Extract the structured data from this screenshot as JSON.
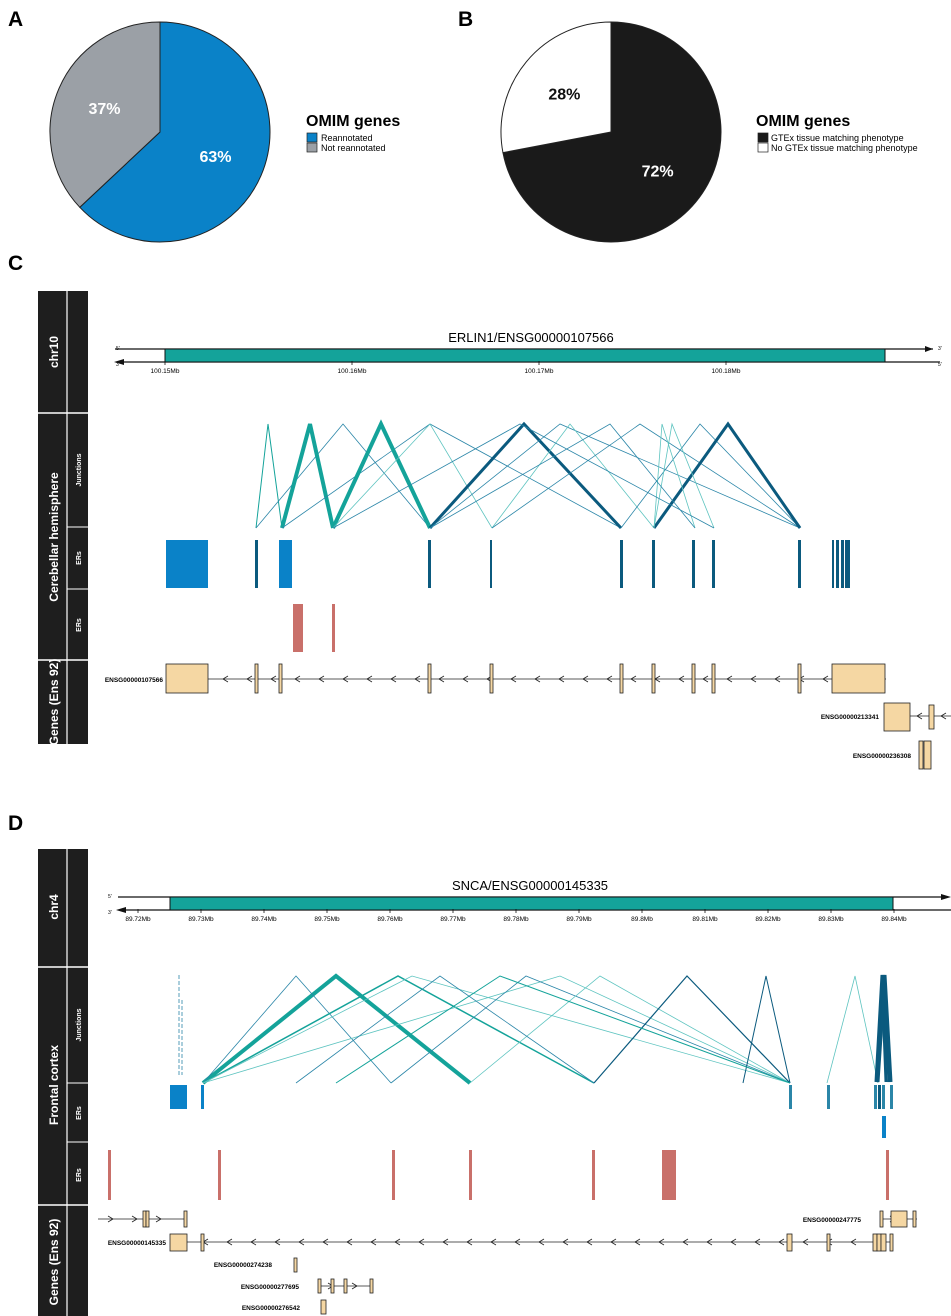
{
  "panels": {
    "A": {
      "letter": "A",
      "legend_title": "OMIM genes",
      "labels": [
        "63%",
        "37%"
      ],
      "chart_data": {
        "type": "pie",
        "categories": [
          "Reannotated",
          "Not reannotated"
        ],
        "values": [
          63,
          37
        ],
        "colors": [
          "#0a82c8",
          "#9ba0a6"
        ],
        "label_colors": [
          "#ffffff",
          "#ffffff"
        ],
        "legend_placement": "right"
      }
    },
    "B": {
      "letter": "B",
      "legend_title": "OMIM genes",
      "labels": [
        "72%",
        "28%"
      ],
      "chart_data": {
        "type": "pie",
        "categories": [
          "GTEx tissue matching phenotype",
          "No GTEx tissue matching phenotype"
        ],
        "values": [
          72,
          28
        ],
        "colors": [
          "#1a1a1a",
          "#ffffff"
        ],
        "label_colors": [
          "#ffffff",
          "#111111"
        ],
        "legend_placement": "right"
      }
    },
    "C": {
      "letter": "C",
      "track_labels": {
        "chrom": "chr10",
        "tissue": "Cerebellar hemisphere",
        "junctions": "Junctions",
        "ers1": "ERs",
        "ers2": "ERs",
        "genes": "Genes (Ens 92)"
      },
      "gene_title": "ERLIN1/ENSG00000107566",
      "strand": {
        "top_left": "5'",
        "top_right": "3'",
        "bottom_left": "3'",
        "bottom_right": "5'"
      },
      "ticks": [
        "100.15Mb",
        "100.16Mb",
        "100.17Mb",
        "100.18Mb"
      ],
      "gene_labels": [
        "ENSG00000107566",
        "ENSG00000213341",
        "ENSG00000236308"
      ]
    },
    "D": {
      "letter": "D",
      "track_labels": {
        "chrom": "chr4",
        "tissue": "Frontal cortex",
        "junctions": "Junctions",
        "ers1": "ERs",
        "ers2": "ERs",
        "genes": "Genes (Ens 92)"
      },
      "gene_title": "SNCA/ENSG00000145335",
      "strand": {
        "top_left": "5'",
        "bottom_left": "3'"
      },
      "ticks": [
        "89.72Mb",
        "89.73Mb",
        "89.74Mb",
        "89.75Mb",
        "89.76Mb",
        "89.77Mb",
        "89.78Mb",
        "89.79Mb",
        "89.8Mb",
        "89.81Mb",
        "89.82Mb",
        "89.83Mb",
        "89.84Mb"
      ],
      "gene_labels": [
        "ENSG00000247775",
        "ENSG00000145335",
        "ENSG00000274238",
        "ENSG00000277695",
        "ENSG00000276542"
      ]
    }
  },
  "colors": {
    "teal": "#14a39a",
    "teal_dark": "#0b9189",
    "blue_er": "#0a82c8",
    "navy": "#0b5a7e",
    "red_er": "#c9706a",
    "gene_fill": "#f5d7a3",
    "sidebar": "#1e1e1e"
  }
}
